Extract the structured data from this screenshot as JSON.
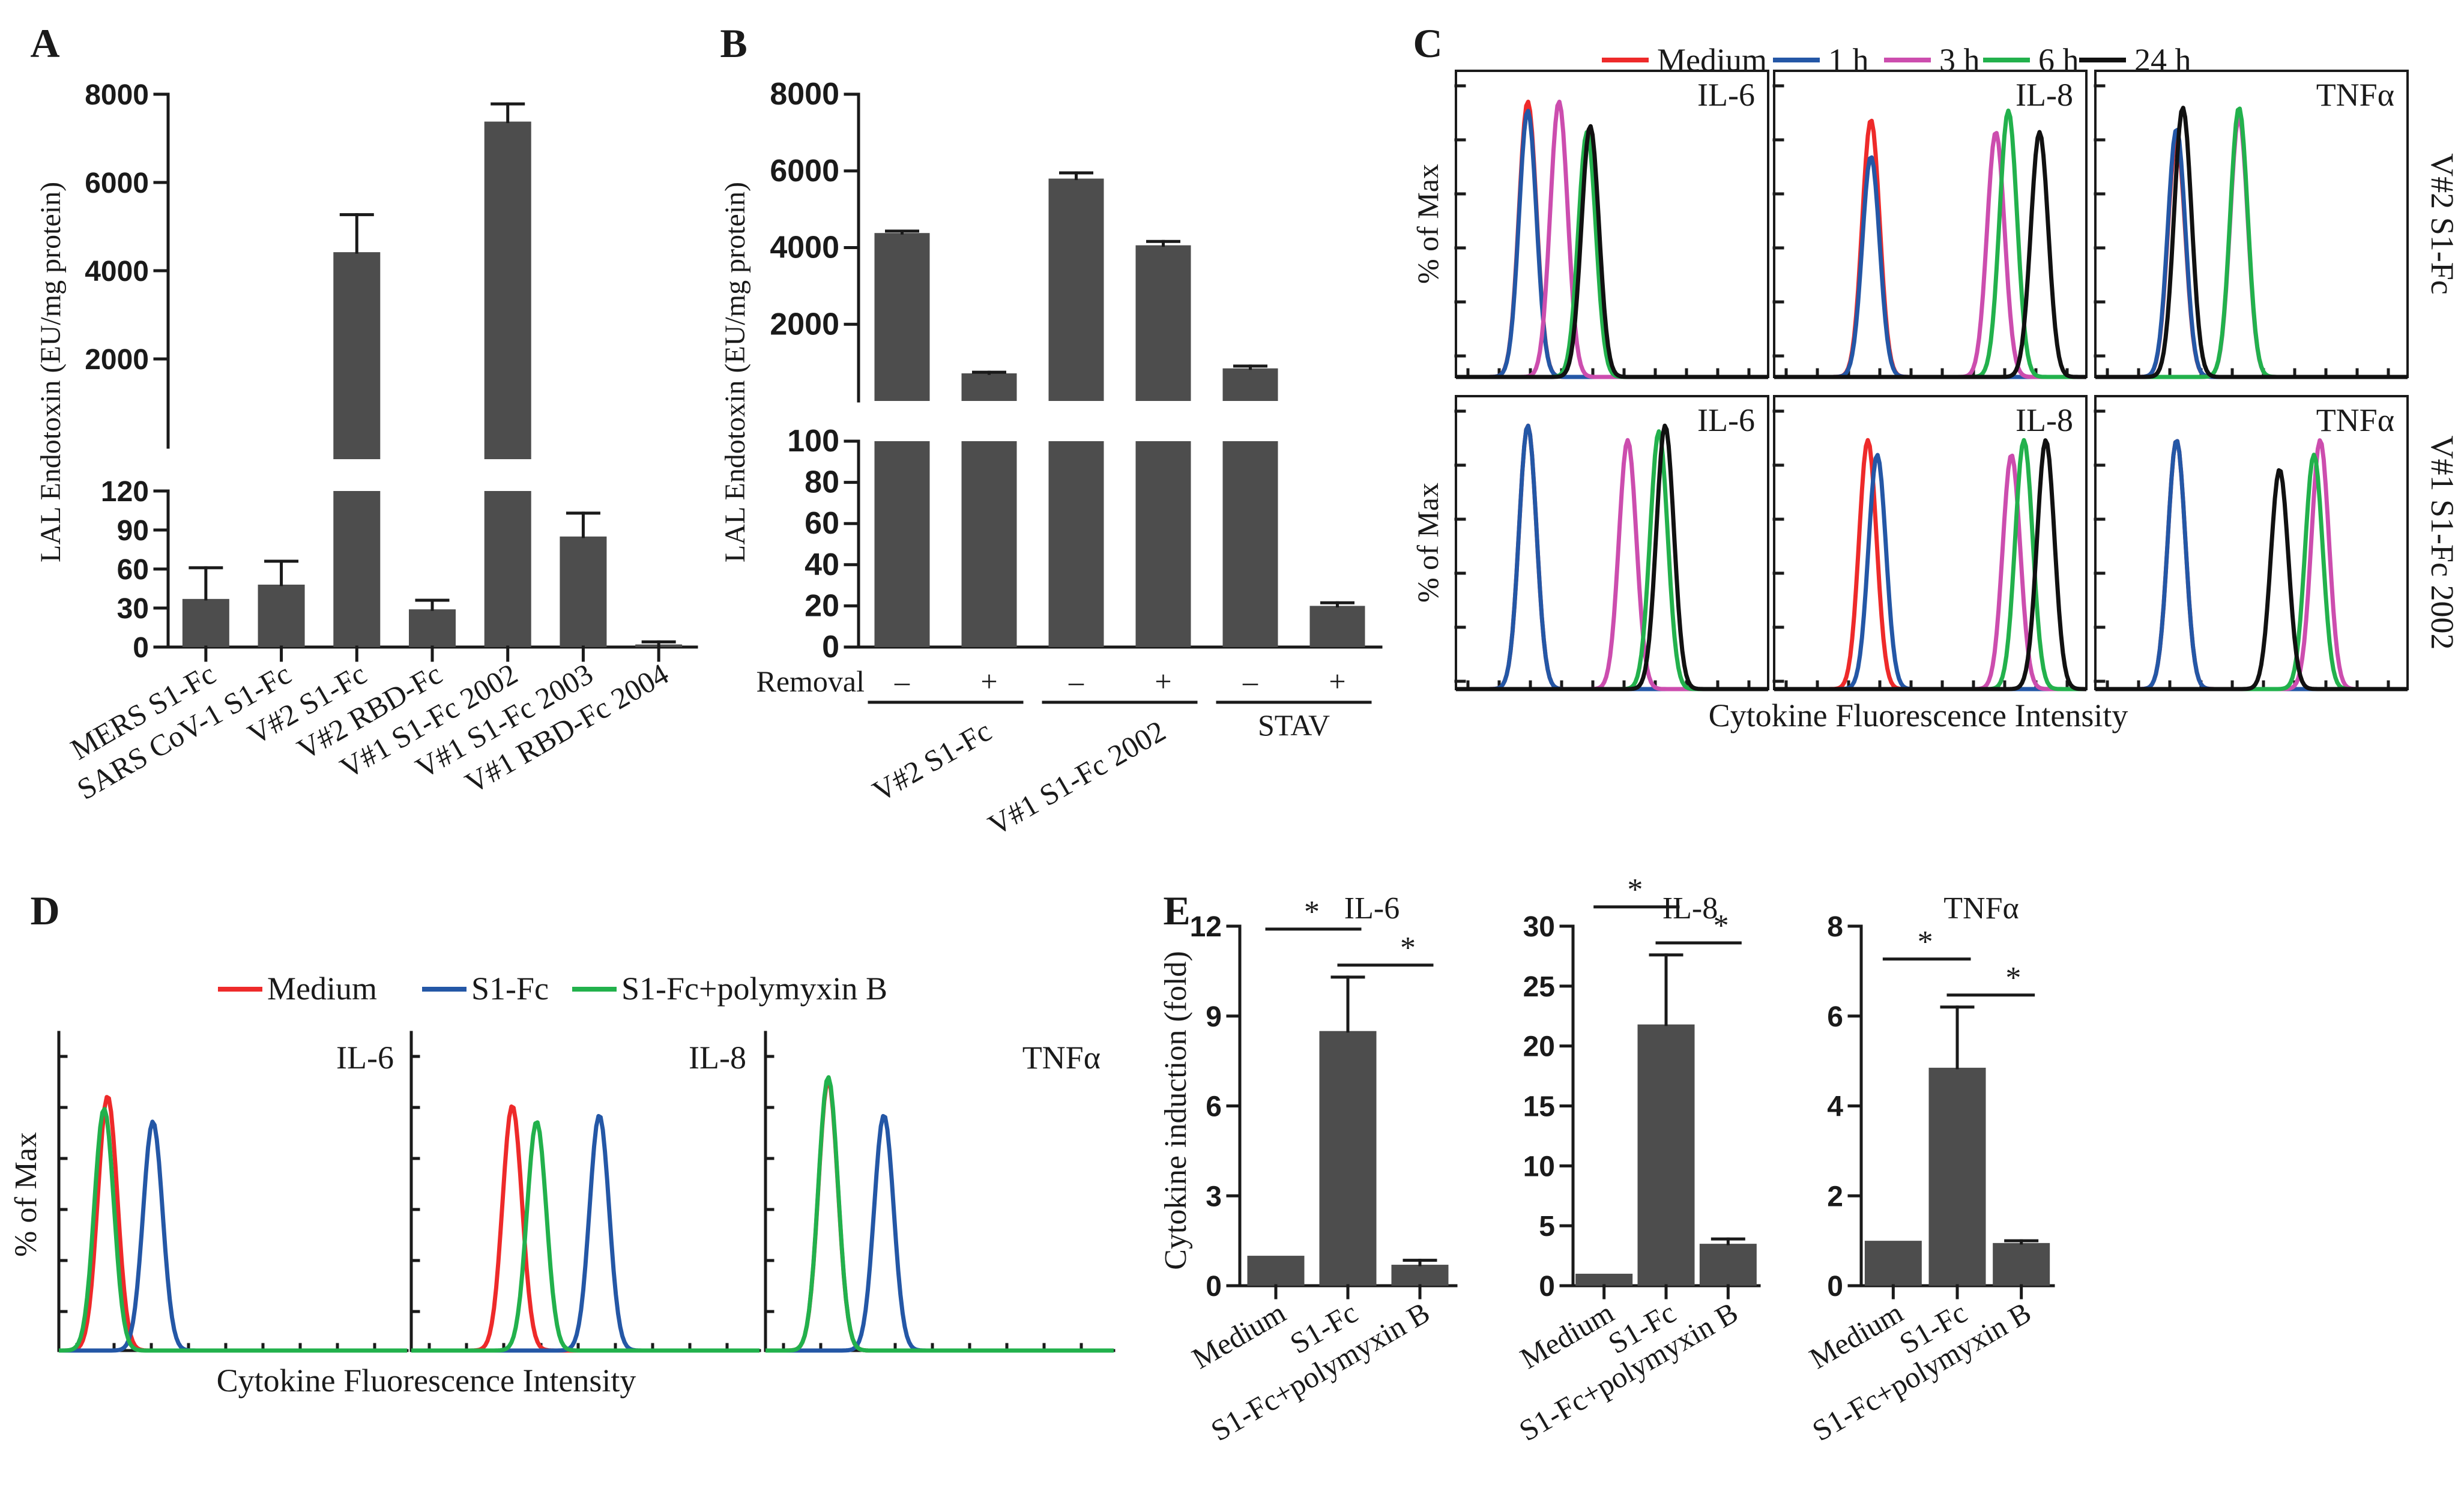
{
  "colors": {
    "bar": "#4d4d4d",
    "axis": "#1a1a1a",
    "medium": "#ee2a2a",
    "h1": "#2457a6",
    "h3": "#cc4dae",
    "h6": "#22b14c",
    "h24": "#111111",
    "s1fc": "#2457a6",
    "polymyxin": "#22b14c"
  },
  "chart_data": [
    {
      "panel": "A",
      "type": "bar",
      "ylabel": "LAL Endotoxin (EU/mg protein)",
      "categories": [
        "MERS S1-Fc",
        "SARS CoV-1 S1-Fc",
        "V#2 S1-Fc",
        "V#2 RBD-Fc",
        "V#1 S1-Fc 2002",
        "V#1 S1-Fc 2003",
        "V#1 RBD-Fc 2004"
      ],
      "values": [
        37,
        48,
        4420,
        29,
        7380,
        85,
        2
      ],
      "errors": [
        24,
        18,
        850,
        7,
        400,
        18,
        2
      ],
      "axis_break": {
        "lower": [
          0,
          120
        ],
        "upper": [
          0,
          8000
        ]
      },
      "lower_ticks": [
        "0",
        "30",
        "60",
        "90",
        "120"
      ],
      "upper_ticks": [
        "2000",
        "4000",
        "6000",
        "8000"
      ]
    },
    {
      "panel": "B",
      "type": "bar",
      "ylabel": "LAL Endotoxin (EU/mg protein)",
      "removal_label": "Removal",
      "removal_signs": [
        "–",
        "+",
        "–",
        "+",
        "–",
        "+"
      ],
      "groups": [
        "V#2 S1-Fc",
        "V#1 S1-Fc 2002",
        "STAV"
      ],
      "values": [
        4380,
        720,
        5800,
        4060,
        850,
        20
      ],
      "errors": [
        50,
        30,
        150,
        100,
        60,
        1.5
      ],
      "axis_break": {
        "lower": [
          0,
          100
        ],
        "upper": [
          0,
          8000
        ]
      },
      "lower_ticks": [
        "0",
        "20",
        "40",
        "60",
        "80",
        "100"
      ],
      "upper_ticks": [
        "2000",
        "4000",
        "6000",
        "8000"
      ]
    },
    {
      "panel": "C",
      "type": "histogram",
      "legend": [
        "Medium",
        "1 h",
        "3 h",
        "6 h",
        "24 h"
      ],
      "columns": [
        "IL-6",
        "IL-8",
        "TNFα"
      ],
      "rows": [
        "V#2 S1-Fc",
        "V#1 S1-Fc 2002"
      ],
      "ylabel": "% of Max",
      "xlabel": "Cytokine Fluorescence Intensity"
    },
    {
      "panel": "D",
      "type": "histogram",
      "legend": [
        "Medium",
        "S1-Fc",
        "S1-Fc+polymyxin B"
      ],
      "columns": [
        "IL-6",
        "IL-8",
        "TNFα"
      ],
      "ylabel": "% of Max",
      "xlabel": "Cytokine Fluorescence Intensity"
    },
    {
      "panel": "E",
      "type": "bar",
      "ylabel": "Cytokine induction (fold)",
      "categories": [
        "Medium",
        "S1-Fc",
        "S1-Fc+polymyxin B"
      ],
      "significance": "*",
      "subplots": [
        {
          "title": "IL-6",
          "ylim": [
            0,
            12
          ],
          "ticks": [
            "0",
            "3",
            "6",
            "9",
            "12"
          ],
          "values": [
            1.0,
            8.5,
            0.7
          ],
          "errors": [
            0,
            1.8,
            0.15
          ]
        },
        {
          "title": "IL-8",
          "ylim": [
            0,
            30
          ],
          "ticks": [
            "0",
            "5",
            "10",
            "15",
            "20",
            "25",
            "30"
          ],
          "values": [
            1.0,
            21.8,
            3.5
          ],
          "errors": [
            0,
            5.8,
            0.4
          ]
        },
        {
          "title": "TNFα",
          "ylim": [
            0,
            8
          ],
          "ticks": [
            "0",
            "2",
            "4",
            "6",
            "8"
          ],
          "values": [
            1.0,
            4.85,
            0.95
          ],
          "errors": [
            0,
            1.35,
            0.05
          ]
        }
      ]
    }
  ]
}
